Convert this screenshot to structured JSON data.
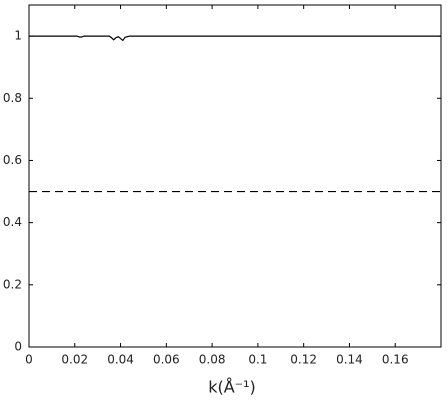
{
  "chart_data": {
    "type": "line",
    "x_label": "k(Å⁻¹)",
    "xlim": [
      0,
      0.18
    ],
    "xticks": [
      0,
      0.02,
      0.04,
      0.06,
      0.08,
      0.1,
      0.12,
      0.14,
      0.16
    ],
    "ylim": [
      0,
      1.1
    ],
    "yticks": [
      0,
      0.2,
      0.4,
      0.6,
      0.8,
      1
    ],
    "grid": false,
    "series": [
      {
        "color": "#000000",
        "linestyle": "solid",
        "x": [
          0,
          0.021,
          0.022,
          0.023,
          0.024,
          0.035,
          0.036,
          0.037,
          0.038,
          0.039,
          0.04,
          0.041,
          0.042,
          0.044,
          0.18
        ],
        "values": [
          1,
          1,
          0.997,
          0.997,
          1,
          1,
          0.995,
          0.988,
          0.995,
          0.998,
          0.992,
          0.986,
          0.996,
          1,
          1
        ]
      },
      {
        "color": "#000000",
        "linestyle": "dashed",
        "x": [
          0,
          0.18
        ],
        "values": [
          0.5,
          0.5
        ]
      }
    ]
  }
}
